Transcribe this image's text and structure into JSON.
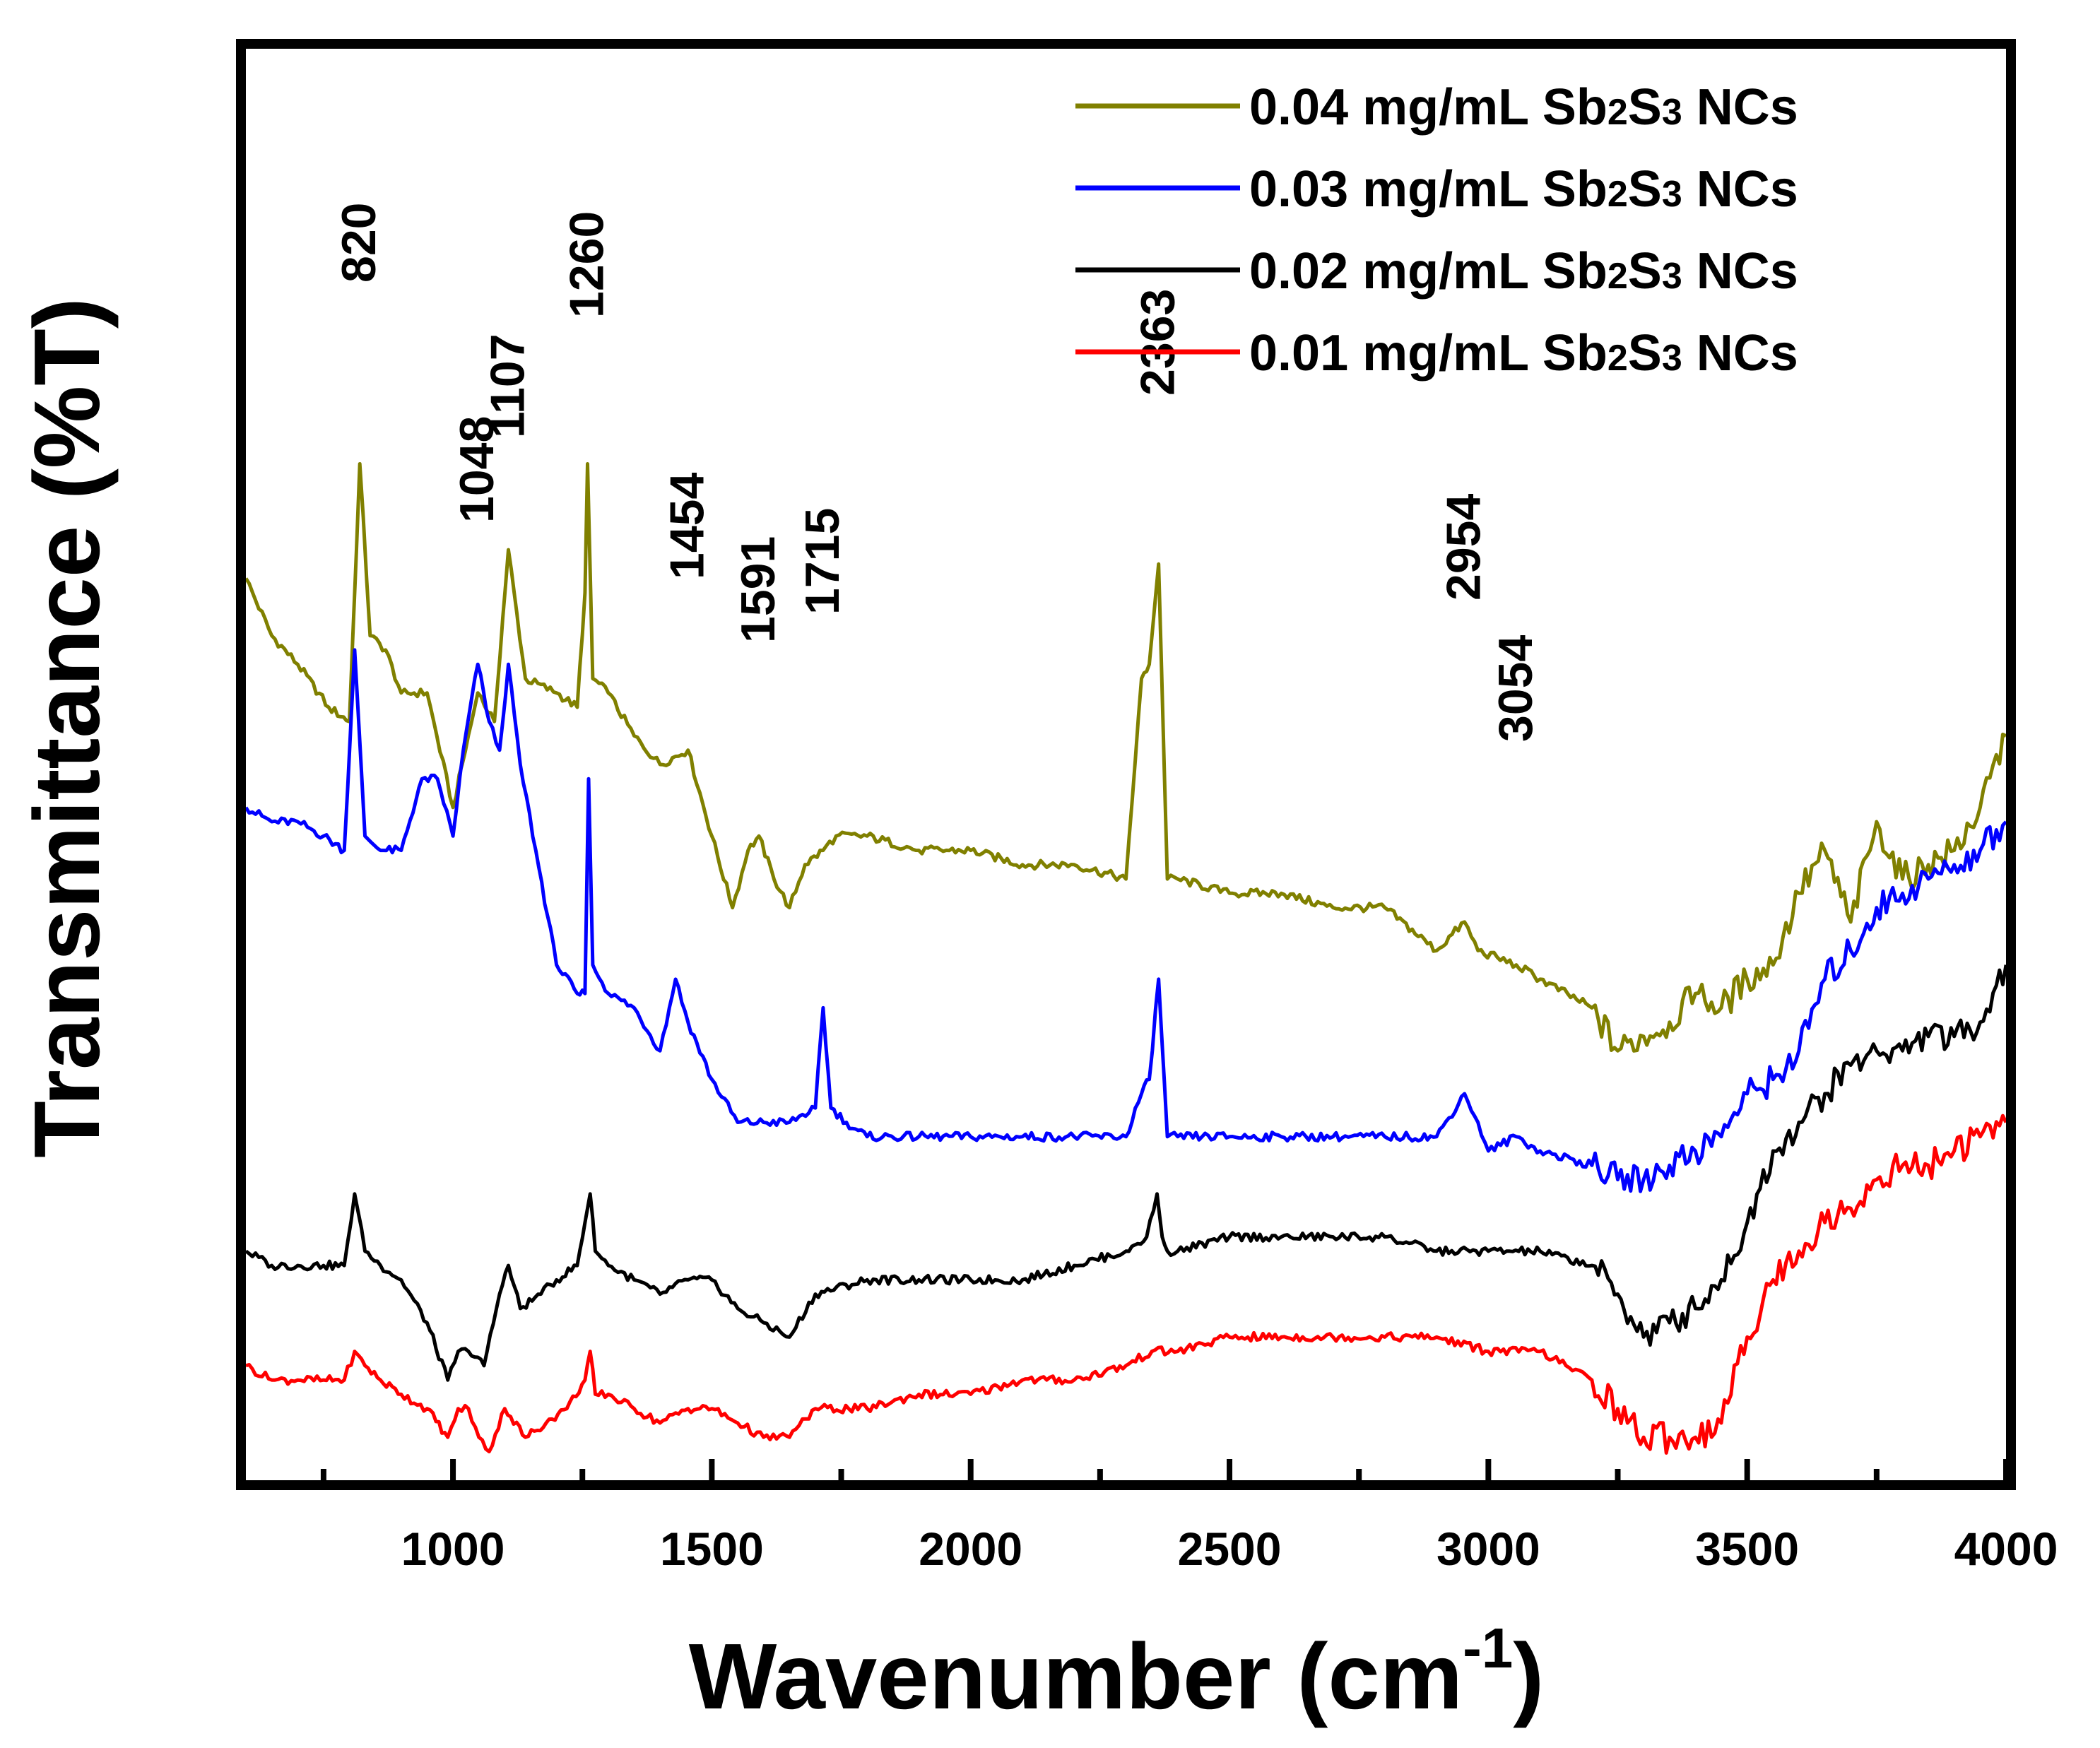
{
  "chart_data": {
    "type": "line",
    "xlabel": "Wavenumber (cm",
    "xlabel_superscript": "-1",
    "xlabel_close": ")",
    "ylabel": "Transmittance (%T)",
    "xlim": [
      600,
      4000
    ],
    "ylim": [
      0,
      100
    ],
    "y_ticks_labeled": false,
    "grid": false,
    "legend_position": "top-right",
    "x_ticks": [
      1000,
      1500,
      2000,
      2500,
      3000,
      3500,
      4000
    ],
    "x_tick_labels": [
      "1000",
      "1500",
      "2000",
      "2500",
      "3000",
      "3500",
      "4000"
    ],
    "series": [
      {
        "name": "0.04 mg/mL Sb2S3 NCs",
        "legend_parts": [
          "0.04 mg/mL Sb",
          "2",
          "S",
          "3",
          " NCs"
        ],
        "color": "#808000",
        "x": [
          600,
          650,
          700,
          760,
          800,
          820,
          840,
          870,
          900,
          950,
          1000,
          1048,
          1080,
          1107,
          1140,
          1200,
          1240,
          1255,
          1260,
          1270,
          1300,
          1350,
          1400,
          1454,
          1500,
          1540,
          1570,
          1591,
          1620,
          1650,
          1680,
          1715,
          1740,
          1800,
          1900,
          2000,
          2100,
          2200,
          2300,
          2330,
          2345,
          2363,
          2380,
          2400,
          2500,
          2600,
          2700,
          2800,
          2900,
          2954,
          2980,
          3054,
          3100,
          3200,
          3250,
          3300,
          3350,
          3400,
          3450,
          3500,
          3550,
          3600,
          3650,
          3700,
          3750,
          3800,
          3850,
          3900,
          3950,
          4000
        ],
        "y": [
          63,
          59,
          57,
          54,
          53,
          71,
          59,
          58,
          55,
          55,
          47,
          55,
          53,
          65,
          56,
          55,
          54,
          62,
          71,
          56,
          55,
          52,
          50,
          51,
          45,
          40,
          44,
          45,
          42,
          40,
          43,
          44,
          45,
          45,
          44,
          44,
          43,
          43,
          42,
          56,
          57,
          64,
          42,
          42,
          41,
          41,
          40,
          40,
          37,
          39,
          37,
          36,
          35,
          33,
          30,
          31,
          32,
          34,
          33,
          35,
          36,
          41,
          44,
          39,
          46,
          42,
          43,
          44,
          47,
          52
        ]
      },
      {
        "name": "0.03 mg/mL Sb2S3 NCs",
        "legend_parts": [
          "0.03 mg/mL Sb",
          "2",
          "S",
          "3",
          " NCs"
        ],
        "color": "#0000ff",
        "x": [
          600,
          650,
          700,
          750,
          790,
          810,
          830,
          860,
          900,
          940,
          970,
          1000,
          1020,
          1048,
          1070,
          1090,
          1107,
          1130,
          1160,
          1200,
          1240,
          1255,
          1262,
          1270,
          1300,
          1350,
          1400,
          1430,
          1454,
          1500,
          1550,
          1600,
          1650,
          1700,
          1715,
          1730,
          1760,
          1800,
          1900,
          2000,
          2100,
          2200,
          2300,
          2330,
          2345,
          2363,
          2380,
          2400,
          2500,
          2600,
          2700,
          2800,
          2900,
          2954,
          2980,
          3000,
          3054,
          3100,
          3200,
          3250,
          3300,
          3350,
          3400,
          3450,
          3500,
          3550,
          3600,
          3650,
          3700,
          3750,
          3800,
          3850,
          3900,
          3950,
          4000
        ],
        "y": [
          47,
          46,
          46,
          45,
          44,
          58,
          45,
          44,
          44,
          49,
          49,
          45,
          51,
          57,
          53,
          51,
          57,
          50,
          44,
          36,
          34,
          34,
          49,
          36,
          34,
          33,
          30,
          35,
          32,
          28,
          25,
          25,
          25,
          26,
          33,
          26,
          25,
          24,
          24,
          24,
          24,
          24,
          24,
          27,
          28,
          35,
          24,
          24,
          24,
          24,
          24,
          24,
          24,
          27,
          25,
          23,
          24,
          23,
          22,
          21,
          21,
          22,
          23,
          24,
          27,
          28,
          30,
          35,
          37,
          40,
          41,
          42,
          43,
          44,
          46
        ]
      },
      {
        "name": "0.02 mg/mL Sb2S3 NCs",
        "legend_parts": [
          "0.02 mg/mL Sb",
          "2",
          "S",
          "3",
          " NCs"
        ],
        "color": "#000000",
        "x": [
          600,
          650,
          700,
          750,
          790,
          810,
          830,
          860,
          900,
          950,
          990,
          1010,
          1030,
          1060,
          1090,
          1107,
          1130,
          1170,
          1200,
          1240,
          1255,
          1265,
          1275,
          1300,
          1350,
          1400,
          1454,
          1500,
          1550,
          1600,
          1650,
          1700,
          1800,
          1900,
          2000,
          2100,
          2200,
          2300,
          2340,
          2360,
          2370,
          2380,
          2400,
          2500,
          2600,
          2700,
          2800,
          2900,
          3000,
          3100,
          3200,
          3250,
          3300,
          3350,
          3400,
          3450,
          3500,
          3550,
          3600,
          3650,
          3700,
          3750,
          3800,
          3850,
          3900,
          3950,
          4000
        ],
        "y": [
          16,
          15,
          15,
          15,
          15,
          20,
          16,
          15,
          14,
          11,
          7,
          9,
          9,
          8,
          13,
          15,
          12,
          13,
          14,
          15,
          18,
          20,
          16,
          15,
          14,
          13,
          14,
          14,
          12,
          11,
          10,
          13,
          14,
          14,
          14,
          14,
          15,
          16,
          17,
          20,
          17,
          16,
          16,
          17,
          17,
          17,
          17,
          16,
          16,
          16,
          15,
          13,
          10,
          11,
          12,
          14,
          18,
          23,
          25,
          27,
          29,
          30,
          30,
          31,
          31,
          32,
          36
        ]
      },
      {
        "name": "0.01 mg/mL Sb2S3 NCs",
        "legend_parts": [
          "0.01 mg/mL Sb",
          "2",
          "S",
          "3",
          " NCs"
        ],
        "color": "#ff0000",
        "x": [
          600,
          650,
          700,
          750,
          790,
          810,
          830,
          860,
          900,
          950,
          990,
          1010,
          1030,
          1050,
          1070,
          1100,
          1140,
          1180,
          1220,
          1255,
          1265,
          1275,
          1300,
          1350,
          1400,
          1454,
          1500,
          1550,
          1600,
          1650,
          1700,
          1800,
          1900,
          2000,
          2100,
          2200,
          2300,
          2350,
          2400,
          2500,
          2600,
          2700,
          2800,
          2900,
          3000,
          3100,
          3150,
          3200,
          3250,
          3300,
          3350,
          3400,
          3450,
          3500,
          3550,
          3600,
          3650,
          3700,
          3750,
          3800,
          3850,
          3900,
          3950,
          4000
        ],
        "y": [
          8,
          7,
          7,
          7,
          7,
          9,
          8,
          7,
          6,
          5,
          3,
          5,
          5,
          3,
          2,
          5,
          3,
          4,
          5,
          7,
          9,
          6,
          6,
          5,
          4,
          5,
          5,
          4,
          3,
          3,
          5,
          5,
          6,
          6,
          7,
          7,
          8,
          9,
          9,
          10,
          10,
          10,
          10,
          10,
          9,
          9,
          8,
          7,
          5,
          3,
          3,
          3,
          4,
          10,
          14,
          16,
          18,
          19,
          21,
          22,
          22,
          23,
          24,
          25
        ]
      }
    ],
    "annotations": [
      {
        "text": "820",
        "x": 820
      },
      {
        "text": "1048",
        "x": 1048
      },
      {
        "text": "1107",
        "x": 1107
      },
      {
        "text": "1260",
        "x": 1260
      },
      {
        "text": "1454",
        "x": 1454
      },
      {
        "text": "1591",
        "x": 1591
      },
      {
        "text": "1715",
        "x": 1715
      },
      {
        "text": "2363",
        "x": 2363
      },
      {
        "text": "2954",
        "x": 2954
      },
      {
        "text": "3054",
        "x": 3054
      }
    ]
  }
}
